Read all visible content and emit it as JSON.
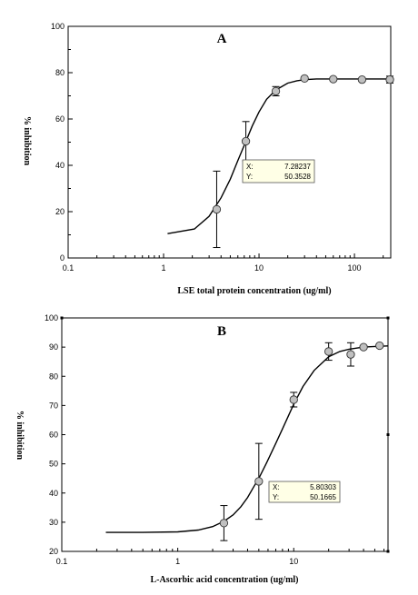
{
  "chart_data": [
    {
      "type": "scatter",
      "panel_label": "A",
      "xlabel": "LSE total protein concentration (ug/ml)",
      "ylabel": "% inhibition",
      "xscale": "log",
      "xlim": [
        0.1,
        240
      ],
      "ylim": [
        0,
        100
      ],
      "x_ticks": [
        0.1,
        1,
        10,
        100
      ],
      "x_tick_labels": [
        "0.1",
        "1",
        "10",
        "100"
      ],
      "y_ticks": [
        0,
        20,
        40,
        60,
        80,
        100
      ],
      "y_tick_labels": [
        "0",
        "20",
        "40",
        "60",
        "80",
        "100"
      ],
      "grid": false,
      "points": [
        {
          "x": 3.6,
          "y": 21,
          "err": 16.5
        },
        {
          "x": 7.28,
          "y": 50.4,
          "err": 8.5
        },
        {
          "x": 15,
          "y": 72,
          "err": 2
        },
        {
          "x": 30,
          "y": 77.5,
          "err": 0.6
        },
        {
          "x": 60,
          "y": 77.2,
          "err": 0.5
        },
        {
          "x": 120,
          "y": 77,
          "err": 0.5
        },
        {
          "x": 235,
          "y": 77,
          "err": 1.5
        }
      ],
      "fit_curve": {
        "x": [
          1.1,
          2.1,
          3.0,
          4.0,
          5.0,
          6.0,
          7.28,
          8.5,
          10,
          12,
          15,
          20,
          25,
          30,
          40,
          60,
          100,
          160,
          235
        ],
        "y": [
          10.5,
          12.5,
          18,
          26,
          34,
          42,
          50.35,
          57,
          63,
          68.5,
          72.5,
          75.5,
          76.5,
          77,
          77.3,
          77.3,
          77.3,
          77.3,
          77.3
        ]
      },
      "tooltip": {
        "x_label": "X:",
        "x_value": "7.28237",
        "y_label": "Y:",
        "y_value": "50.3528",
        "at_x": 7.28237,
        "at_y": 50.3528
      }
    },
    {
      "type": "scatter",
      "panel_label": "B",
      "xlabel": "L-Ascorbic acid concentration (ug/ml)",
      "ylabel": "% inhibition",
      "xscale": "log",
      "xlim": [
        0.1,
        65
      ],
      "ylim": [
        20,
        100
      ],
      "x_ticks": [
        0.1,
        1,
        10
      ],
      "x_tick_labels": [
        "0.1",
        "1",
        "10"
      ],
      "y_ticks": [
        20,
        30,
        40,
        50,
        60,
        70,
        80,
        90,
        100
      ],
      "y_tick_labels": [
        "20",
        "30",
        "40",
        "50",
        "60",
        "70",
        "80",
        "90",
        "100"
      ],
      "grid": false,
      "points": [
        {
          "x": 2.5,
          "y": 29.7,
          "err": 6
        },
        {
          "x": 5.0,
          "y": 44,
          "err": 13
        },
        {
          "x": 10.0,
          "y": 72,
          "err": 2.5
        },
        {
          "x": 20.0,
          "y": 88.5,
          "err": 3
        },
        {
          "x": 31.0,
          "y": 87.5,
          "err": 4
        },
        {
          "x": 40.0,
          "y": 90,
          "err": 0.5
        },
        {
          "x": 55.0,
          "y": 90.5,
          "err": 0.5
        }
      ],
      "fit_curve": {
        "x": [
          0.24,
          0.5,
          1.0,
          1.5,
          2.0,
          2.5,
          3.0,
          3.5,
          4.0,
          4.5,
          5.0,
          5.80303,
          7.0,
          8.0,
          10,
          12,
          15,
          20,
          25,
          30,
          40,
          55,
          65
        ],
        "y": [
          26.5,
          26.5,
          26.7,
          27.3,
          28.5,
          30.3,
          32.5,
          35.3,
          38.5,
          42,
          45,
          50.17,
          57,
          62,
          70.5,
          76.5,
          82,
          86.7,
          88.5,
          89.3,
          90,
          90.3,
          90.4
        ]
      },
      "tooltip": {
        "x_label": "X:",
        "x_value": "5.80303",
        "y_label": "Y:",
        "y_value": "50.1665",
        "at_x": 5.80303,
        "at_y": 50.1665
      }
    }
  ]
}
